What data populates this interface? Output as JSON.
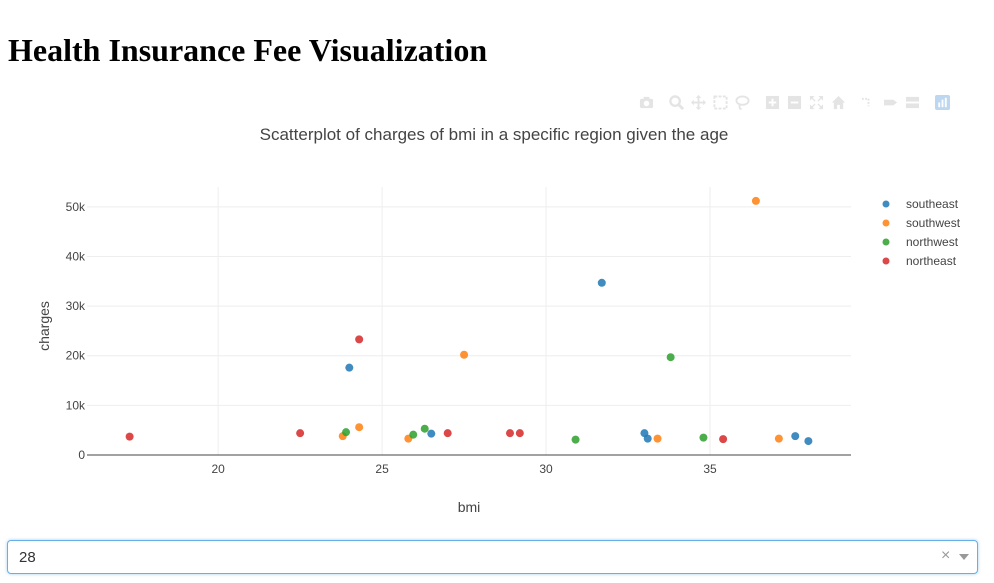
{
  "page": {
    "title": "Health Insurance Fee Visualization"
  },
  "modebar": {
    "icons": [
      "camera-icon",
      "zoom-icon",
      "pan-icon",
      "box-select-icon",
      "lasso-icon",
      "zoom-in-icon",
      "zoom-out-icon",
      "autoscale-icon",
      "home-icon",
      "spike-lines-icon",
      "hover-closest-icon",
      "hover-compare-icon",
      "plotly-logo-icon"
    ]
  },
  "chart_data": {
    "type": "scatter",
    "title": "Scatterplot of charges of bmi in a specific region given the age",
    "xlabel": "bmi",
    "ylabel": "charges",
    "xlim": [
      16,
      39.3
    ],
    "ylim": [
      0,
      54000
    ],
    "x_ticks": [
      20,
      25,
      30,
      35
    ],
    "x_tick_labels": [
      "20",
      "25",
      "30",
      "35"
    ],
    "y_ticks": [
      0,
      10000,
      20000,
      30000,
      40000,
      50000
    ],
    "y_tick_labels": [
      "0",
      "10k",
      "20k",
      "30k",
      "40k",
      "50k"
    ],
    "grid": true,
    "legend_position": "top-right",
    "series": [
      {
        "name": "southeast",
        "color": "#1f77b4",
        "points": [
          [
            24.0,
            17600
          ],
          [
            31.7,
            34700
          ],
          [
            33.0,
            4400
          ],
          [
            33.1,
            3300
          ],
          [
            26.5,
            4300
          ],
          [
            37.6,
            3800
          ],
          [
            38.0,
            2800
          ]
        ]
      },
      {
        "name": "southwest",
        "color": "#ff7f0e",
        "points": [
          [
            23.8,
            3800
          ],
          [
            24.3,
            5600
          ],
          [
            25.8,
            3300
          ],
          [
            27.5,
            20200
          ],
          [
            33.4,
            3300
          ],
          [
            36.4,
            51200
          ],
          [
            37.1,
            3300
          ]
        ]
      },
      {
        "name": "northwest",
        "color": "#2ca02c",
        "points": [
          [
            23.9,
            4600
          ],
          [
            25.95,
            4100
          ],
          [
            26.3,
            5300
          ],
          [
            30.9,
            3100
          ],
          [
            33.8,
            19700
          ],
          [
            34.8,
            3500
          ]
        ]
      },
      {
        "name": "northeast",
        "color": "#d62728",
        "points": [
          [
            17.3,
            3700
          ],
          [
            22.5,
            4400
          ],
          [
            24.3,
            23300
          ],
          [
            27.0,
            4400
          ],
          [
            28.9,
            4400
          ],
          [
            29.2,
            4400
          ],
          [
            35.4,
            3200
          ]
        ]
      }
    ]
  },
  "dropdown": {
    "value": "28",
    "clear_glyph": "×"
  }
}
